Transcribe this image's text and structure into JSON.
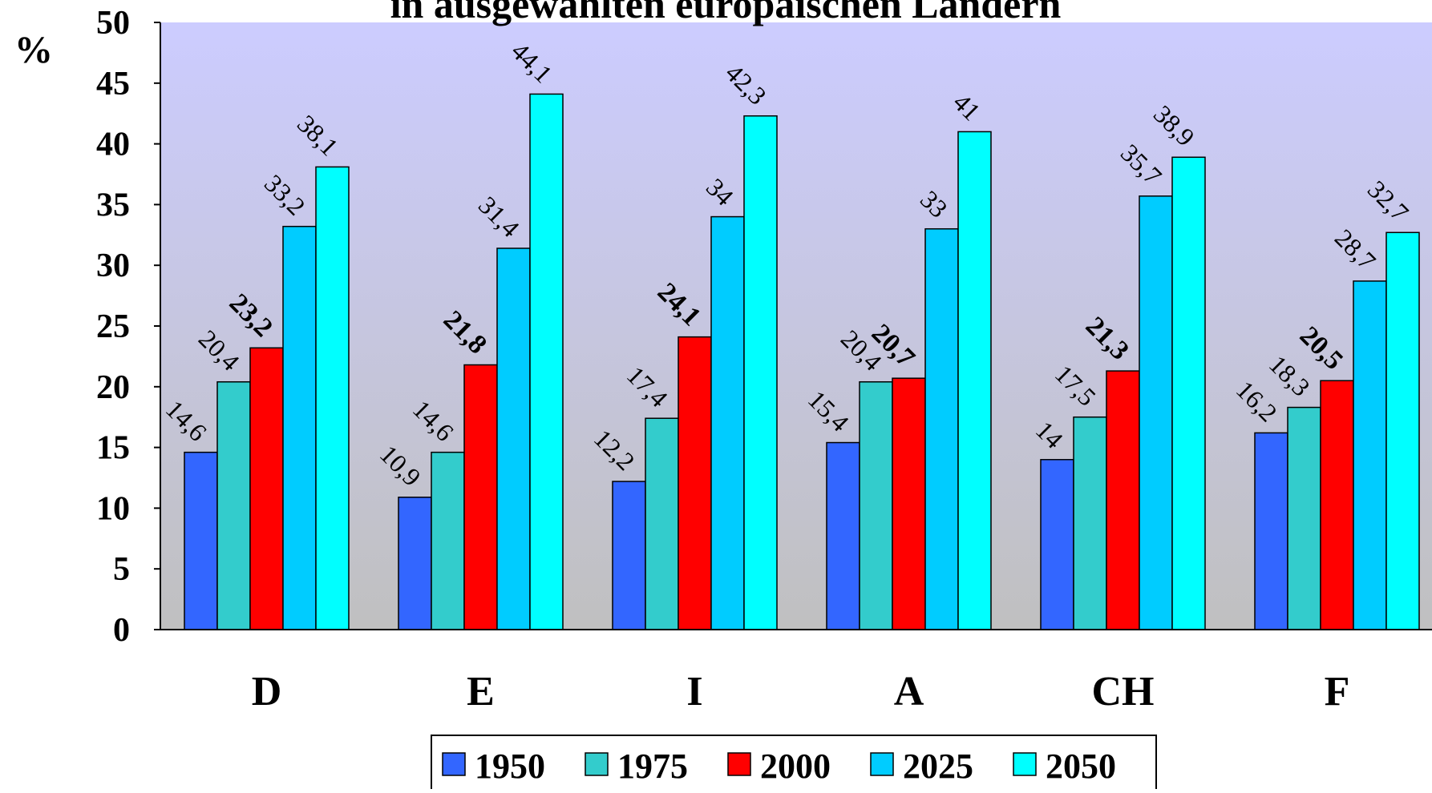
{
  "chart_data": {
    "type": "bar",
    "title": "in ausgewählten europäischen Ländern",
    "ylabel": "%",
    "xlabel": "",
    "ylim": [
      0,
      50
    ],
    "yticks": [
      0,
      5,
      10,
      15,
      20,
      25,
      30,
      35,
      40,
      45,
      50
    ],
    "categories": [
      "D",
      "E",
      "I",
      "A",
      "CH",
      "F"
    ],
    "series": [
      {
        "name": "1950",
        "color": "#3366ff",
        "values": [
          14.6,
          10.9,
          12.2,
          15.4,
          14,
          16.2
        ],
        "labels": [
          "14,6",
          "10,9",
          "12,2",
          "15,4",
          "14",
          "16,2"
        ],
        "label_bold": false
      },
      {
        "name": "1975",
        "color": "#33cccc",
        "values": [
          20.4,
          14.6,
          17.4,
          20.4,
          17.5,
          18.3
        ],
        "labels": [
          "20,4",
          "14,6",
          "17,4",
          "20,4",
          "17,5",
          "18,3"
        ],
        "label_bold": false
      },
      {
        "name": "2000",
        "color": "#ff0000",
        "values": [
          23.2,
          21.8,
          24.1,
          20.7,
          21.3,
          20.5
        ],
        "labels": [
          "23,2",
          "21,8",
          "24,1",
          "20,7",
          "21,3",
          "20,5"
        ],
        "label_bold": true
      },
      {
        "name": "2025",
        "color": "#00ccff",
        "values": [
          33.2,
          31.4,
          34,
          33,
          35.7,
          28.7
        ],
        "labels": [
          "33,2",
          "31,4",
          "34",
          "33",
          "35,7",
          "28,7"
        ],
        "label_bold": false
      },
      {
        "name": "2050",
        "color": "#00ffff",
        "values": [
          38.1,
          44.1,
          42.3,
          41,
          38.9,
          32.7
        ],
        "labels": [
          "38,1",
          "44,1",
          "42,3",
          "41",
          "38,9",
          "32,7"
        ],
        "label_bold": false
      }
    ],
    "background_gradient": [
      "#c0c0c0",
      "#ccccff"
    ],
    "grid": false,
    "legend_position": "bottom"
  }
}
